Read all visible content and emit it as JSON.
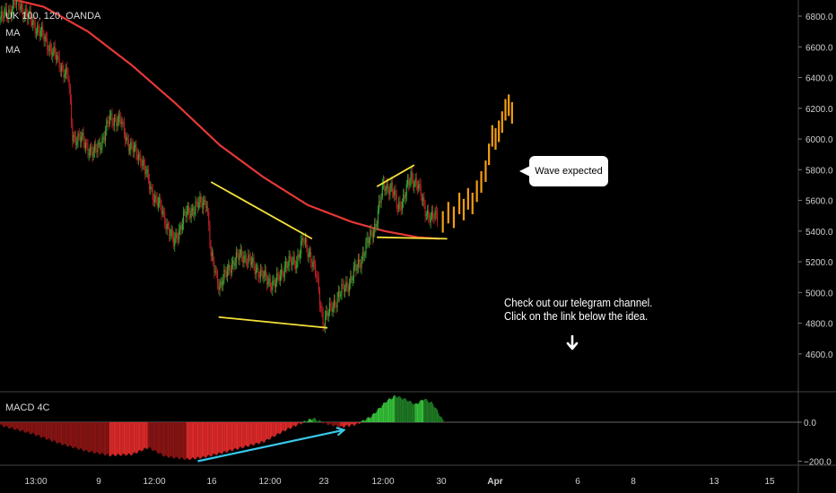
{
  "header": {
    "symbol": "UK 100, 120, OANDA",
    "ind1": "MA",
    "ind2": "MA",
    "macd_label": "MACD 4C"
  },
  "callout": {
    "text": "Wave expected"
  },
  "note": {
    "line1": "Check out our telegram channel.",
    "line2": "Click on the link below the idea."
  },
  "colors": {
    "up": "#2eae34",
    "down": "#c22025",
    "ma": "#e53935",
    "trend": "#f5e23a",
    "projection": "#f39c12",
    "macd_arrow": "#3ac8e8",
    "bg": "#000000"
  },
  "chart_data": [
    {
      "type": "candlestick",
      "title": "UK 100, 120, OANDA",
      "ylim": [
        4400,
        6900
      ],
      "y_ticks": [
        4600,
        4800,
        5000,
        5200,
        5400,
        5600,
        5800,
        6000,
        6200,
        6400,
        6600,
        6800
      ],
      "y_tick_labels": [
        "4600.0",
        "4800.0",
        "5000.0",
        "5200.0",
        "5400.0",
        "5600.0",
        "5800.0",
        "6000.0",
        "6200.0",
        "6400.0",
        "6600.0",
        "6800.0"
      ],
      "x_ticks": [
        "13:00",
        "9",
        "12:00",
        "16",
        "12:00",
        "23",
        "12:00",
        "30",
        "Apr",
        "6",
        "8",
        "13",
        "15"
      ],
      "anchors": [
        [
          0,
          6780
        ],
        [
          8,
          6830
        ],
        [
          15,
          6900
        ],
        [
          25,
          6800
        ],
        [
          35,
          6710
        ],
        [
          45,
          6600
        ],
        [
          55,
          6480
        ],
        [
          62,
          6400
        ],
        [
          66,
          6020
        ],
        [
          75,
          5990
        ],
        [
          85,
          5900
        ],
        [
          95,
          6020
        ],
        [
          100,
          6140
        ],
        [
          110,
          6110
        ],
        [
          118,
          5950
        ],
        [
          128,
          5880
        ],
        [
          138,
          5660
        ],
        [
          148,
          5520
        ],
        [
          158,
          5320
        ],
        [
          168,
          5500
        ],
        [
          178,
          5560
        ],
        [
          188,
          5600
        ],
        [
          192,
          5230
        ],
        [
          200,
          5040
        ],
        [
          210,
          5180
        ],
        [
          220,
          5250
        ],
        [
          230,
          5180
        ],
        [
          240,
          5100
        ],
        [
          250,
          5050
        ],
        [
          260,
          5180
        ],
        [
          270,
          5210
        ],
        [
          276,
          5340
        ],
        [
          282,
          5250
        ],
        [
          288,
          5100
        ],
        [
          294,
          4810
        ],
        [
          300,
          4880
        ],
        [
          308,
          4980
        ],
        [
          318,
          5070
        ],
        [
          328,
          5210
        ],
        [
          335,
          5330
        ],
        [
          342,
          5450
        ],
        [
          349,
          5700
        ],
        [
          356,
          5680
        ],
        [
          362,
          5560
        ],
        [
          368,
          5620
        ],
        [
          374,
          5760
        ],
        [
          380,
          5700
        ],
        [
          386,
          5560
        ],
        [
          392,
          5480
        ],
        [
          398,
          5500
        ]
      ],
      "moving_average": [
        [
          6,
          6920
        ],
        [
          40,
          6860
        ],
        [
          80,
          6700
        ],
        [
          120,
          6480
        ],
        [
          160,
          6230
        ],
        [
          200,
          5960
        ],
        [
          240,
          5750
        ],
        [
          280,
          5570
        ],
        [
          320,
          5460
        ],
        [
          350,
          5400
        ],
        [
          380,
          5360
        ],
        [
          400,
          5350
        ]
      ],
      "projection_bars": [
        [
          403,
          5460
        ],
        [
          408,
          5520
        ],
        [
          413,
          5490
        ],
        [
          418,
          5580
        ],
        [
          422,
          5540
        ],
        [
          426,
          5610
        ],
        [
          430,
          5580
        ],
        [
          434,
          5660
        ],
        [
          438,
          5720
        ],
        [
          442,
          5790
        ],
        [
          445,
          5900
        ],
        [
          448,
          6020
        ],
        [
          451,
          6000
        ],
        [
          454,
          6050
        ],
        [
          457,
          6110
        ],
        [
          460,
          6190
        ],
        [
          463,
          6220
        ],
        [
          466,
          6170
        ]
      ],
      "trendlines": [
        [
          [
            192,
            5720
          ],
          [
            284,
            5350
          ]
        ],
        [
          [
            199,
            4840
          ],
          [
            298,
            4770
          ]
        ],
        [
          [
            343,
            5690
          ],
          [
            377,
            5830
          ]
        ],
        [
          [
            343,
            5360
          ],
          [
            407,
            5350
          ]
        ]
      ]
    },
    {
      "type": "bar",
      "title": "MACD 4C",
      "ylim": [
        -220,
        160
      ],
      "y_ticks": [
        0,
        -200
      ],
      "y_tick_labels": [
        "0.0",
        "−200.0"
      ],
      "anchors": [
        [
          0,
          -15
        ],
        [
          30,
          -60
        ],
        [
          55,
          -110
        ],
        [
          80,
          -150
        ],
        [
          100,
          -170
        ],
        [
          120,
          -165
        ],
        [
          135,
          -130
        ],
        [
          150,
          -175
        ],
        [
          170,
          -190
        ],
        [
          185,
          -180
        ],
        [
          200,
          -160
        ],
        [
          220,
          -130
        ],
        [
          240,
          -100
        ],
        [
          260,
          -40
        ],
        [
          272,
          -10
        ],
        [
          285,
          20
        ],
        [
          295,
          -5
        ],
        [
          310,
          -25
        ],
        [
          325,
          -10
        ],
        [
          338,
          30
        ],
        [
          345,
          70
        ],
        [
          352,
          110
        ],
        [
          360,
          135
        ],
        [
          370,
          115
        ],
        [
          378,
          90
        ],
        [
          386,
          120
        ],
        [
          394,
          95
        ],
        [
          400,
          40
        ],
        [
          404,
          0
        ]
      ],
      "arrow_line": [
        [
          180,
          -200
        ],
        [
          313,
          -40
        ]
      ]
    }
  ]
}
